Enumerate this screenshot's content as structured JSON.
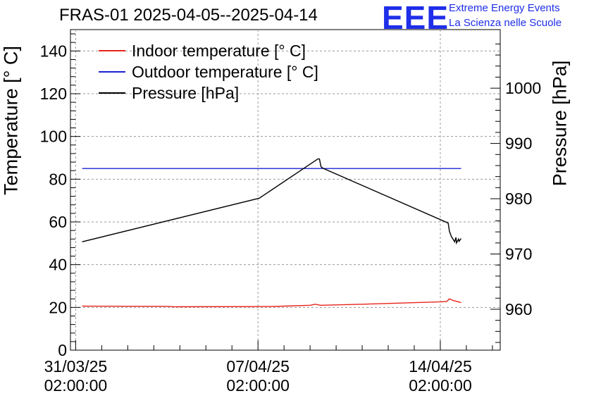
{
  "chart_data": {
    "type": "line",
    "title": "FRAS-01 2025-04-05--2025-04-14",
    "logo": {
      "text": "EEE",
      "line1": "Extreme Energy Events",
      "line2": "La Scienza nelle Scuole",
      "color": "#1f2ee8"
    },
    "ylabel_left": "Temperature [° C]",
    "ylabel_right": "Pressure [hPa]",
    "ylim_left": [
      0,
      150
    ],
    "ylim_right": [
      952.6,
      1010.6
    ],
    "xlim_days": [
      -0.2,
      16.3
    ],
    "x_ticks": [
      {
        "day": 0,
        "date": "31/03/25",
        "time": "02:00:00"
      },
      {
        "day": 7,
        "date": "07/04/25",
        "time": "02:00:00"
      },
      {
        "day": 14,
        "date": "14/04/25",
        "time": "02:00:00"
      }
    ],
    "y_ticks_left": [
      "0",
      "20",
      "40",
      "60",
      "80",
      "100",
      "120",
      "140"
    ],
    "y_ticks_right": [
      "960",
      "970",
      "980",
      "990",
      "1000"
    ],
    "grid": true,
    "legend_position": "top-left",
    "series": [
      {
        "name": "Indoor temperature [° C]",
        "color": "#e8241b",
        "axis": "left",
        "points": [
          [
            0.25,
            20.6
          ],
          [
            3.5,
            20.5
          ],
          [
            3.8,
            20.3
          ],
          [
            7.5,
            20.4
          ],
          [
            8.0,
            20.6
          ],
          [
            9.0,
            21.0
          ],
          [
            9.2,
            21.5
          ],
          [
            9.4,
            21.0
          ],
          [
            11.0,
            21.5
          ],
          [
            14.0,
            22.6
          ],
          [
            14.25,
            22.8
          ],
          [
            14.35,
            24.0
          ],
          [
            14.5,
            23.2
          ],
          [
            14.8,
            22.3
          ]
        ]
      },
      {
        "name": "Outdoor temperature [° C]",
        "color": "#1d22d4",
        "axis": "left",
        "points": [
          [
            0.25,
            85.0
          ],
          [
            14.8,
            85.0
          ]
        ]
      },
      {
        "name": "Pressure [hPa]",
        "color": "#000000",
        "axis": "right",
        "points": [
          [
            0.25,
            972.2
          ],
          [
            7.05,
            980.1
          ],
          [
            9.3,
            987.2
          ],
          [
            9.36,
            987.2
          ],
          [
            9.42,
            985.8
          ],
          [
            9.5,
            985.5
          ],
          [
            14.3,
            975.6
          ],
          [
            14.35,
            974.1
          ],
          [
            14.42,
            973.2
          ],
          [
            14.5,
            972.6
          ],
          [
            14.55,
            972.2
          ],
          [
            14.6,
            973.0
          ],
          [
            14.62,
            972.0
          ],
          [
            14.7,
            972.7
          ],
          [
            14.72,
            972.3
          ],
          [
            14.8,
            972.8
          ]
        ]
      }
    ]
  }
}
